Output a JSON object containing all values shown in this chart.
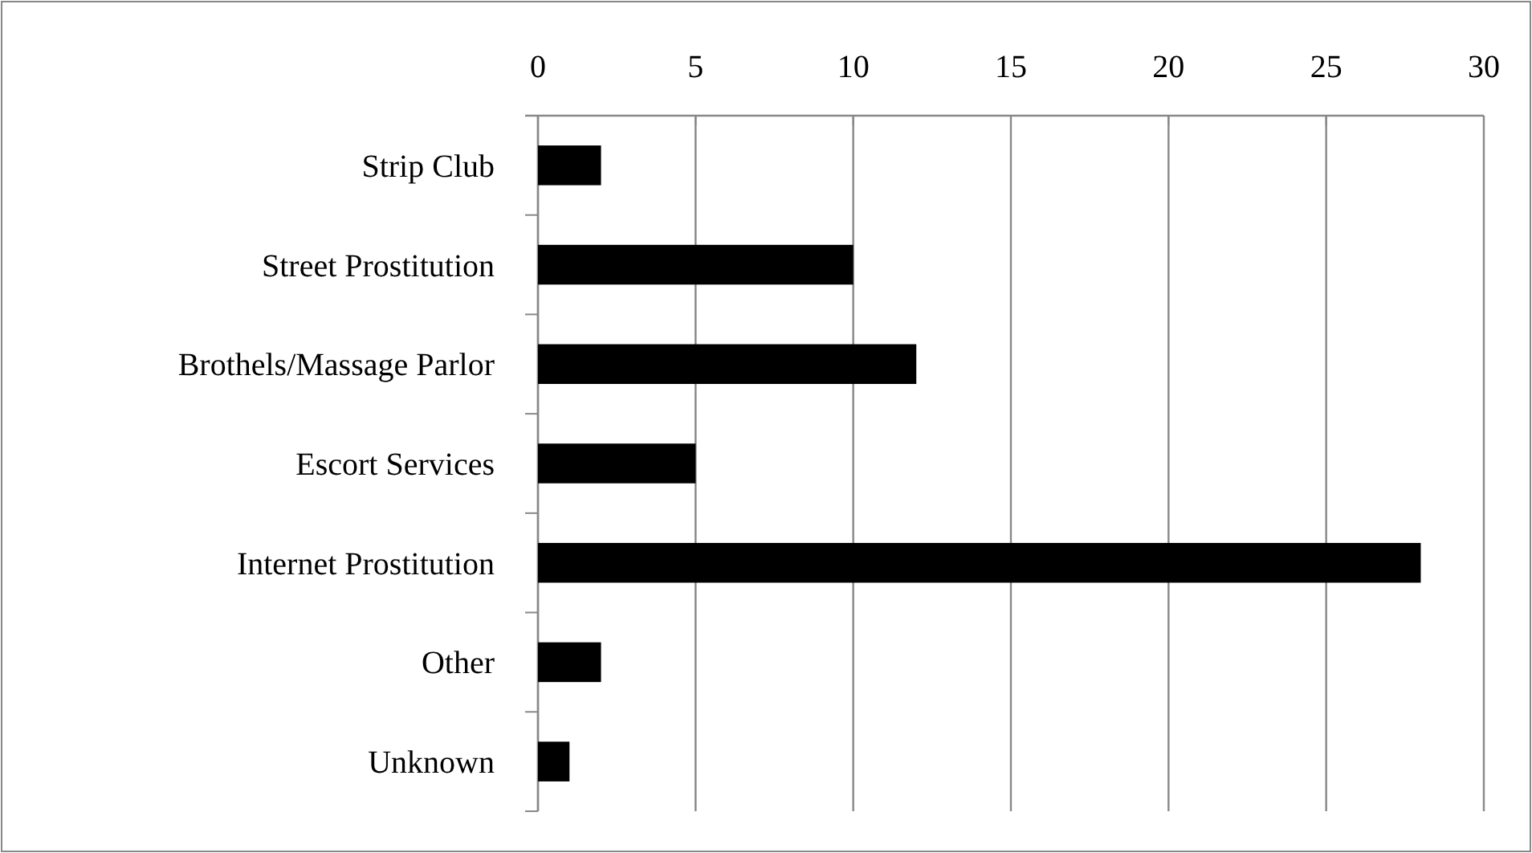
{
  "chart_data": {
    "type": "bar",
    "orientation": "horizontal",
    "categories": [
      "Strip Club",
      "Street Prostitution",
      "Brothels/Massage Parlor",
      "Escort Services",
      "Internet Prostitution",
      "Other",
      "Unknown"
    ],
    "values": [
      2,
      10,
      12,
      5,
      28,
      2,
      1
    ],
    "color": "#000000",
    "xlim": [
      0,
      30
    ],
    "xticks": [
      0,
      5,
      10,
      15,
      20,
      25,
      30
    ],
    "grid": "x"
  }
}
